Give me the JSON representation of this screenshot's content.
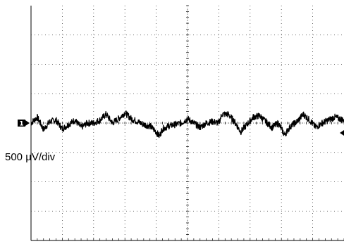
{
  "chart_data": {
    "type": "line",
    "title": "",
    "xlabel": "",
    "ylabel": "",
    "volts_per_division": "500 µV/div",
    "divisions": {
      "x": 10,
      "y": 8
    },
    "xlim": [
      0,
      10
    ],
    "ylim": [
      -4,
      4
    ],
    "grid": true,
    "channel_marker": "1",
    "series": [
      {
        "points": [
          [
            0.0,
            0.0
          ],
          [
            0.2,
            0.2
          ],
          [
            0.4,
            -0.22
          ],
          [
            0.6,
            0.05
          ],
          [
            0.8,
            0.1
          ],
          [
            1.0,
            -0.2
          ],
          [
            1.2,
            -0.05
          ],
          [
            1.4,
            0.1
          ],
          [
            1.6,
            -0.15
          ],
          [
            1.8,
            0.0
          ],
          [
            2.0,
            0.0
          ],
          [
            2.2,
            0.1
          ],
          [
            2.4,
            0.3
          ],
          [
            2.6,
            0.0
          ],
          [
            2.8,
            0.15
          ],
          [
            3.0,
            0.35
          ],
          [
            3.2,
            0.15
          ],
          [
            3.4,
            0.05
          ],
          [
            3.6,
            -0.05
          ],
          [
            3.8,
            -0.1
          ],
          [
            4.0,
            -0.3
          ],
          [
            4.1,
            -0.45
          ],
          [
            4.2,
            -0.2
          ],
          [
            4.4,
            -0.1
          ],
          [
            4.6,
            -0.05
          ],
          [
            4.8,
            0.0
          ],
          [
            5.0,
            0.15
          ],
          [
            5.2,
            0.0
          ],
          [
            5.4,
            -0.15
          ],
          [
            5.6,
            0.0
          ],
          [
            5.8,
            0.05
          ],
          [
            6.0,
            0.0
          ],
          [
            6.1,
            0.3
          ],
          [
            6.3,
            0.3
          ],
          [
            6.5,
            0.05
          ],
          [
            6.7,
            -0.3
          ],
          [
            6.9,
            -0.05
          ],
          [
            7.1,
            0.2
          ],
          [
            7.3,
            0.25
          ],
          [
            7.5,
            0.05
          ],
          [
            7.7,
            -0.15
          ],
          [
            7.9,
            0.0
          ],
          [
            8.1,
            -0.4
          ],
          [
            8.3,
            -0.1
          ],
          [
            8.5,
            0.05
          ],
          [
            8.7,
            0.3
          ],
          [
            8.9,
            0.1
          ],
          [
            9.1,
            -0.15
          ],
          [
            9.3,
            0.0
          ],
          [
            9.5,
            0.1
          ],
          [
            9.7,
            0.2
          ],
          [
            9.85,
            0.15
          ],
          [
            10.0,
            0.1
          ]
        ]
      }
    ]
  }
}
